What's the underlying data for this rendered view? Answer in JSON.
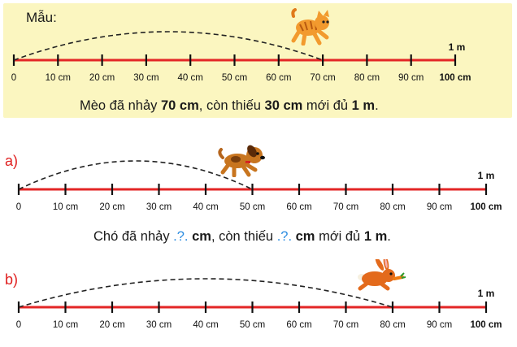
{
  "example": {
    "label": "Mẫu:",
    "sentence": {
      "p1": "Mèo đã nhảy ",
      "jump": "70 cm",
      "p2": ", còn thiếu ",
      "missing": "30 cm",
      "p3": " mới đủ ",
      "total": "1 m",
      "p4": "."
    },
    "jump_cm": 70,
    "animal": "cat-icon"
  },
  "part_a": {
    "label": "a)",
    "sentence": {
      "p1": "Chó đã nhảy ",
      "blank1": ".?.",
      "unit1": " cm",
      "p2": ", còn thiếu ",
      "blank2": ".?.",
      "unit2": " cm",
      "p3": " mới đủ ",
      "total": "1 m",
      "p4": "."
    },
    "jump_cm": 50,
    "animal": "dog-icon"
  },
  "part_b": {
    "label": "b)",
    "jump_cm": 80,
    "animal": "rabbit-icon"
  },
  "ruler": {
    "end_label": "1 m",
    "tick_labels": [
      "0",
      "10 cm",
      "20 cm",
      "30 cm",
      "40 cm",
      "50 cm",
      "60 cm",
      "70 cm",
      "80 cm",
      "90 cm",
      "100 cm"
    ]
  },
  "colors": {
    "ruler_line": "#e32626",
    "panel_bg": "#fbf6c0",
    "label_red": "#e02020",
    "blank_blue": "#2a8be0"
  }
}
